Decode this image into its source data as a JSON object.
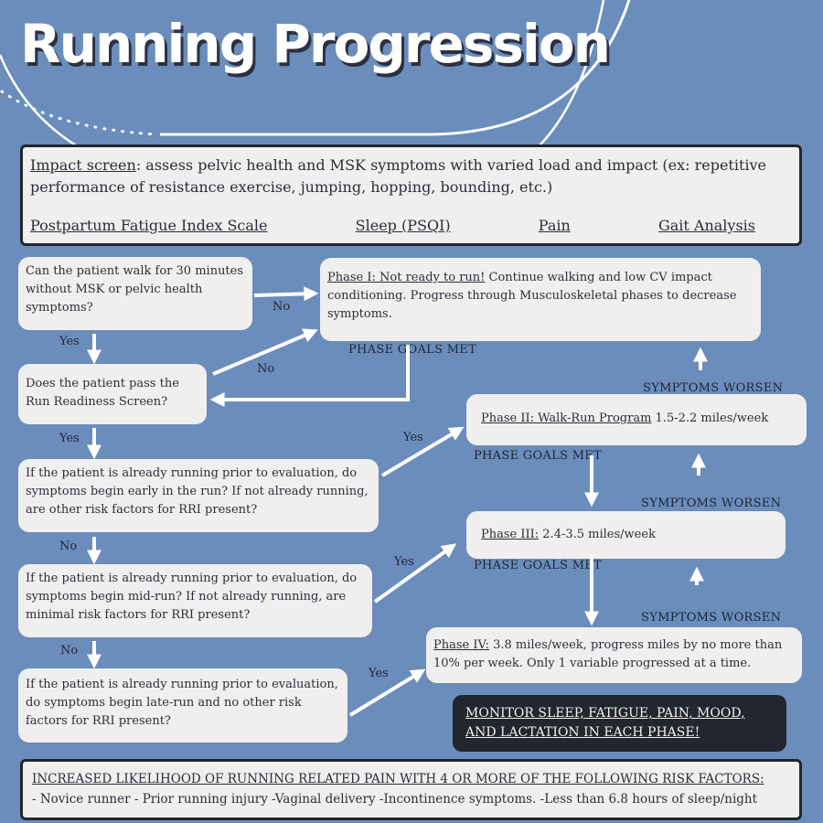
{
  "title": "Running Progression",
  "impact_screen": {
    "label": "Impact screen",
    "text": ": assess pelvic health and MSK symptoms with varied load and impact (ex: repetitive performance of resistance exercise, jumping, hopping, bounding, etc.)",
    "tools": [
      "Postpartum Fatigue Index Scale",
      "Sleep (PSQI)",
      "Pain",
      "Gait Analysis"
    ]
  },
  "questions": [
    "Can the patient walk for 30 minutes without MSK or pelvic health symptoms?",
    "Does the patient pass the Run Readiness Screen?",
    "If the patient is already running prior to evaluation, do symptoms begin early in the run? If not already running, are other risk factors for RRI present?",
    "If the patient is already running prior to evaluation, do symptoms begin mid-run? If not already running, are minimal risk factors for RRI present?",
    "If the patient is already running prior to evaluation, do symptoms begin late-run and no other risk factors for RRI present?"
  ],
  "answers": {
    "yes": "Yes",
    "no": "No"
  },
  "phases": [
    {
      "label": "Phase I: Not ready to run!",
      "text": " Continue walking and low CV impact conditioning. Progress  through Musculoskeletal phases to decrease symptoms."
    },
    {
      "label": "Phase II: Walk-Run Program",
      "text": " 1.5-2.2 miles/week"
    },
    {
      "label": "Phase III:",
      "text": " 2.4-3.5 miles/week"
    },
    {
      "label": "Phase IV:",
      "text": " 3.8 miles/week, progress miles by no more than 10% per week. Only 1 variable progressed at a time."
    }
  ],
  "transitions": {
    "goals_met": "PHASE GOALS MET",
    "worsen": "SYMPTOMS WORSEN"
  },
  "monitor": "MONITOR SLEEP, FATIGUE, PAIN, MOOD, AND LACTATION IN EACH PHASE!",
  "risk": {
    "heading": "INCREASED LIKELIHOOD OF RUNNING RELATED PAIN WITH 4 OR MORE OF THE FOLLOWING RISK FACTORS:",
    "factors": " - Novice runner - Prior running injury  -Vaginal delivery  -Incontinence symptoms.  -Less than 6.8 hours of sleep/night"
  },
  "colors": {
    "background": "#6a8dbc",
    "box": "#f0efed",
    "dark": "#23262e",
    "arrow": "#ffffff"
  }
}
